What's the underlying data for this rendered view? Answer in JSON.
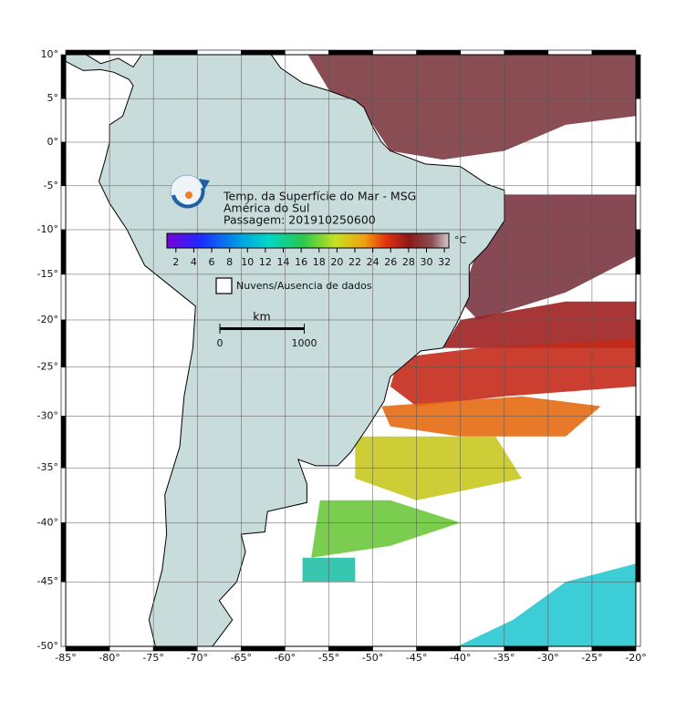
{
  "map": {
    "title": [
      "Temp. da Superfície do Mar - MSG",
      "América do Sul",
      "Passagem: 201910250600"
    ],
    "projection": "mercator",
    "lonlim": [
      -85,
      -20
    ],
    "latlim": [
      -50,
      10
    ],
    "grid": true,
    "xticks": [
      {
        "value": -85,
        "label": "-85°"
      },
      {
        "value": -80,
        "label": "-80°"
      },
      {
        "value": -75,
        "label": "-75°"
      },
      {
        "value": -70,
        "label": "-70°"
      },
      {
        "value": -65,
        "label": "-65°"
      },
      {
        "value": -60,
        "label": "-60°"
      },
      {
        "value": -55,
        "label": "-55°"
      },
      {
        "value": -50,
        "label": "-50°"
      },
      {
        "value": -45,
        "label": "-45°"
      },
      {
        "value": -40,
        "label": "-40°"
      },
      {
        "value": -35,
        "label": "-35°"
      },
      {
        "value": -30,
        "label": "-30°"
      },
      {
        "value": -25,
        "label": "-25°"
      },
      {
        "value": -20,
        "label": "-20°"
      }
    ],
    "yticks": [
      {
        "value": 10,
        "label": "10°"
      },
      {
        "value": 5,
        "label": "5°"
      },
      {
        "value": 0,
        "label": "0°"
      },
      {
        "value": -5,
        "label": "-5°"
      },
      {
        "value": -10,
        "label": "-10°"
      },
      {
        "value": -15,
        "label": "-15°"
      },
      {
        "value": -20,
        "label": "-20°"
      },
      {
        "value": -25,
        "label": "-25°"
      },
      {
        "value": -30,
        "label": "-30°"
      },
      {
        "value": -35,
        "label": "-35°"
      },
      {
        "value": -40,
        "label": "-40°"
      },
      {
        "value": -45,
        "label": "-45°"
      },
      {
        "value": -50,
        "label": "-50°"
      }
    ],
    "colorbar": {
      "unit": "°C",
      "range": [
        1,
        32.5
      ],
      "ticks": [
        2,
        4,
        6,
        8,
        10,
        12,
        14,
        16,
        18,
        20,
        22,
        24,
        26,
        28,
        30,
        32
      ]
    },
    "legend": "Nuvens/Ausencia de dados",
    "scalebar": {
      "unit": "km",
      "ticks": [
        0,
        1000
      ]
    }
  }
}
